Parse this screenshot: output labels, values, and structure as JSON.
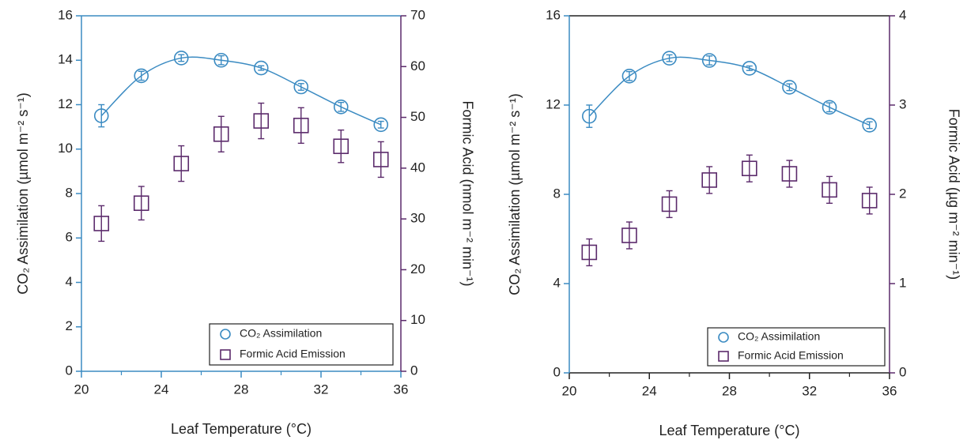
{
  "chart_data": [
    {
      "type": "scatter",
      "x": [
        21,
        23,
        25,
        27,
        29,
        31,
        33,
        35
      ],
      "xlabel": "Leaf Temperature (°C)",
      "ylabel": "CO₂ Assimilation (µmol m⁻² s⁻¹)",
      "y2label": "Formic Acid (nmol m⁻² min⁻¹)",
      "xlim": [
        20,
        36
      ],
      "xticks": [
        20,
        24,
        28,
        32,
        36
      ],
      "xminorticks": [
        22,
        26,
        30,
        34
      ],
      "ylim": [
        0,
        16
      ],
      "yticks": [
        0,
        2,
        4,
        6,
        8,
        10,
        12,
        14,
        16
      ],
      "y2lim": [
        0,
        70
      ],
      "y2ticks": [
        0,
        10,
        20,
        30,
        40,
        50,
        60,
        70
      ],
      "legend": "lower right",
      "series": [
        {
          "name": "CO₂ Assimilation",
          "color": "#3b8bc2",
          "marker": "circle",
          "line": true,
          "values": [
            11.5,
            13.3,
            14.1,
            14.0,
            13.65,
            12.8,
            11.9,
            11.1
          ],
          "errors": [
            0.5,
            0.2,
            0.15,
            0.2,
            0.1,
            0.15,
            0.2,
            0.15
          ]
        },
        {
          "name": "Formic Acid Emission",
          "color": "#5b2a6b",
          "marker": "square",
          "axis": "y2",
          "values": [
            29.1,
            33.1,
            40.9,
            46.7,
            49.3,
            48.4,
            44.3,
            41.7
          ],
          "errors": [
            3.5,
            3.3,
            3.5,
            3.5,
            3.5,
            3.5,
            3.2,
            3.5
          ]
        }
      ]
    },
    {
      "type": "scatter",
      "x": [
        21,
        23,
        25,
        27,
        29,
        31,
        33,
        35
      ],
      "xlabel": "Leaf Temperature (°C)",
      "ylabel": "CO₂ Assimilation (µmol m⁻² s⁻¹)",
      "y2label": "Formic Acid (µg m⁻² min⁻¹)",
      "xlim": [
        20,
        36
      ],
      "xticks": [
        20,
        24,
        28,
        32,
        36
      ],
      "xminorticks": [
        22,
        26,
        30,
        34
      ],
      "ylim": [
        0,
        16
      ],
      "yticks": [
        0,
        4,
        8,
        12,
        16
      ],
      "y2lim": [
        0,
        4
      ],
      "y2ticks": [
        0,
        1,
        2,
        3,
        4
      ],
      "legend": "lower right",
      "series": [
        {
          "name": "CO₂ Assimilation",
          "color": "#3b8bc2",
          "marker": "circle",
          "line": true,
          "values": [
            11.5,
            13.3,
            14.1,
            14.0,
            13.65,
            12.8,
            11.9,
            11.1
          ],
          "errors": [
            0.5,
            0.2,
            0.15,
            0.2,
            0.1,
            0.15,
            0.2,
            0.15
          ]
        },
        {
          "name": "Formic Acid Emission",
          "color": "#5b2a6b",
          "marker": "square",
          "axis": "y2",
          "values": [
            1.35,
            1.54,
            1.89,
            2.16,
            2.29,
            2.23,
            2.05,
            1.93
          ],
          "errors": [
            0.15,
            0.15,
            0.15,
            0.15,
            0.15,
            0.15,
            0.15,
            0.15
          ]
        }
      ]
    }
  ]
}
